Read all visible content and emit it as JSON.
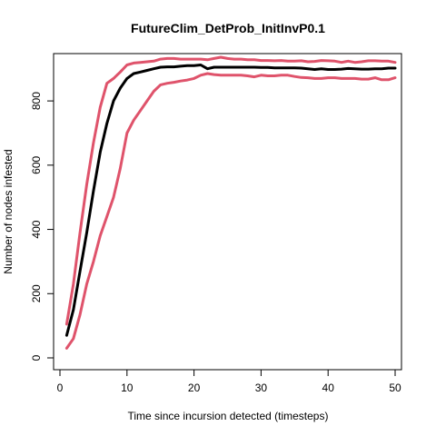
{
  "chart_data": {
    "type": "line",
    "title": "FutureClim_DetProb_InitInvP0.1",
    "xlabel": "Time since incursion detected (timesteps)",
    "ylabel": "Number of nodes infested",
    "xlim": [
      0,
      50
    ],
    "ylim": [
      0,
      940
    ],
    "xticks": [
      0,
      10,
      20,
      30,
      40,
      50
    ],
    "yticks": [
      0,
      200,
      400,
      600,
      800
    ],
    "grid": false,
    "legend": "none",
    "x": [
      1,
      2,
      3,
      4,
      5,
      6,
      7,
      8,
      9,
      10,
      11,
      12,
      13,
      14,
      15,
      16,
      17,
      18,
      19,
      20,
      21,
      22,
      23,
      24,
      25,
      26,
      27,
      28,
      29,
      30,
      31,
      32,
      33,
      34,
      35,
      36,
      37,
      38,
      39,
      40,
      41,
      42,
      43,
      44,
      45,
      46,
      47,
      48,
      49,
      50
    ],
    "series": [
      {
        "color": "#DF536B",
        "width": 3,
        "values": [
          105,
          230,
          390,
          540,
          670,
          780,
          855,
          870,
          890,
          912,
          918,
          920,
          922,
          924,
          930,
          932,
          932,
          930,
          930,
          930,
          930,
          928,
          932,
          936,
          932,
          930,
          930,
          928,
          928,
          926,
          926,
          925,
          926,
          924,
          924,
          925,
          922,
          923,
          926,
          925,
          924,
          920,
          924,
          920,
          922,
          925,
          925,
          924,
          924,
          920
        ]
      },
      {
        "color": "#000000",
        "width": 3,
        "values": [
          70,
          150,
          270,
          390,
          520,
          640,
          730,
          800,
          840,
          870,
          885,
          890,
          895,
          900,
          905,
          906,
          906,
          908,
          910,
          910,
          912,
          900,
          905,
          905,
          905,
          905,
          905,
          905,
          905,
          904,
          904,
          903,
          903,
          903,
          903,
          902,
          900,
          898,
          900,
          898,
          898,
          899,
          901,
          900,
          899,
          899,
          900,
          900,
          902,
          902
        ]
      },
      {
        "color": "#DF536B",
        "width": 3,
        "values": [
          30,
          60,
          135,
          230,
          300,
          380,
          440,
          500,
          590,
          700,
          740,
          770,
          800,
          830,
          850,
          855,
          858,
          862,
          865,
          870,
          880,
          885,
          882,
          880,
          880,
          880,
          880,
          878,
          875,
          880,
          878,
          878,
          880,
          880,
          876,
          873,
          872,
          870,
          870,
          872,
          872,
          870,
          870,
          870,
          868,
          868,
          872,
          866,
          866,
          872
        ]
      }
    ]
  }
}
